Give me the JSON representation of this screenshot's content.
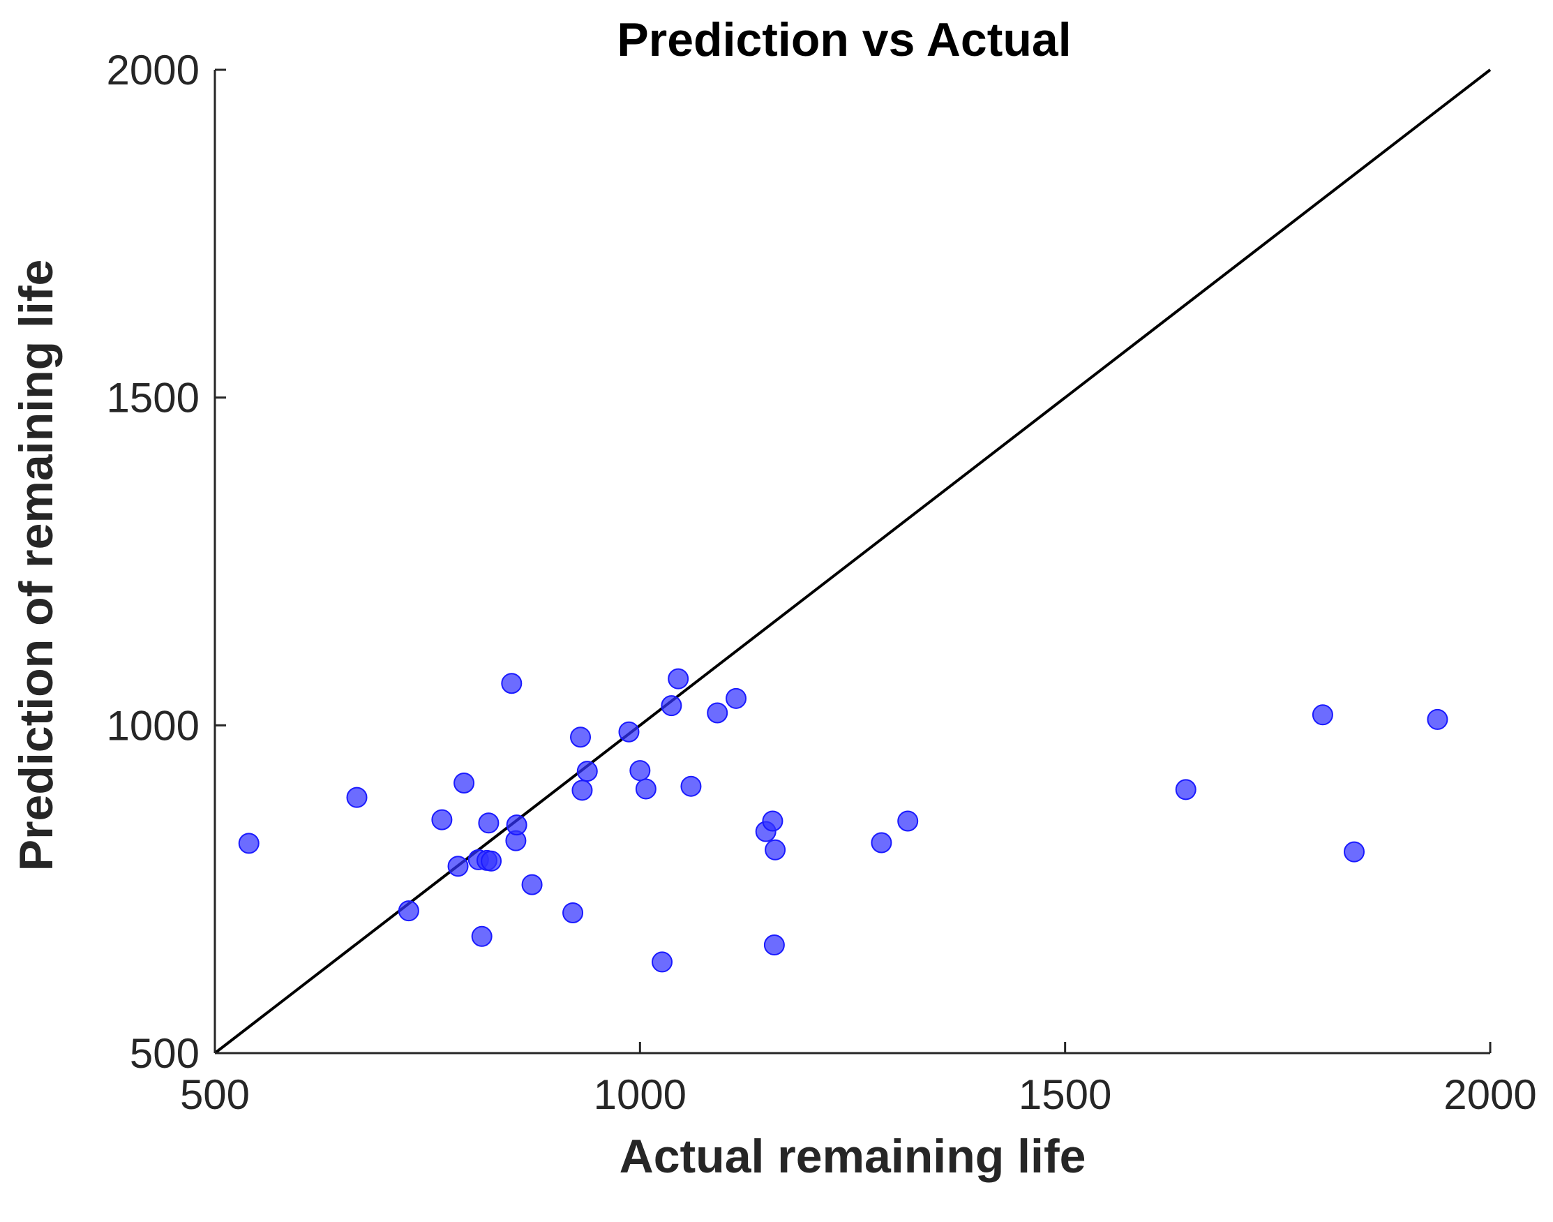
{
  "chart_data": {
    "type": "scatter",
    "title": "Prediction vs Actual",
    "xlabel": "Actual remaining life",
    "ylabel": "Prediction of remaining life",
    "xlim": [
      500,
      2000
    ],
    "ylim": [
      500,
      2000
    ],
    "xticks": [
      500,
      1000,
      1500,
      2000
    ],
    "yticks": [
      500,
      1000,
      1500,
      2000
    ],
    "x_tick_labels": [
      "500",
      "1000",
      "1500",
      "2000"
    ],
    "y_tick_labels": [
      "500",
      "1000",
      "1500",
      "2000"
    ],
    "grid": false,
    "legend": "none",
    "reference_line": {
      "type": "y=x",
      "color": "#000000"
    },
    "marker_color": "#3333ff",
    "points": [
      {
        "x": 540,
        "y": 820
      },
      {
        "x": 667,
        "y": 890
      },
      {
        "x": 728,
        "y": 717
      },
      {
        "x": 767,
        "y": 856
      },
      {
        "x": 786,
        "y": 785
      },
      {
        "x": 793,
        "y": 912
      },
      {
        "x": 810,
        "y": 795
      },
      {
        "x": 814,
        "y": 678
      },
      {
        "x": 820,
        "y": 794
      },
      {
        "x": 822,
        "y": 851
      },
      {
        "x": 825,
        "y": 793
      },
      {
        "x": 849,
        "y": 1064
      },
      {
        "x": 854,
        "y": 824
      },
      {
        "x": 855,
        "y": 848
      },
      {
        "x": 873,
        "y": 757
      },
      {
        "x": 921,
        "y": 714
      },
      {
        "x": 930,
        "y": 982
      },
      {
        "x": 932,
        "y": 901
      },
      {
        "x": 938,
        "y": 930
      },
      {
        "x": 987,
        "y": 990
      },
      {
        "x": 1000,
        "y": 931
      },
      {
        "x": 1007,
        "y": 903
      },
      {
        "x": 1026,
        "y": 639
      },
      {
        "x": 1037,
        "y": 1030
      },
      {
        "x": 1045,
        "y": 1071
      },
      {
        "x": 1060,
        "y": 907
      },
      {
        "x": 1091,
        "y": 1019
      },
      {
        "x": 1113,
        "y": 1041
      },
      {
        "x": 1148,
        "y": 838
      },
      {
        "x": 1156,
        "y": 854
      },
      {
        "x": 1158,
        "y": 665
      },
      {
        "x": 1159,
        "y": 810
      },
      {
        "x": 1284,
        "y": 821
      },
      {
        "x": 1315,
        "y": 854
      },
      {
        "x": 1642,
        "y": 902
      },
      {
        "x": 1803,
        "y": 1016
      },
      {
        "x": 1840,
        "y": 807
      },
      {
        "x": 1938,
        "y": 1009
      }
    ]
  }
}
